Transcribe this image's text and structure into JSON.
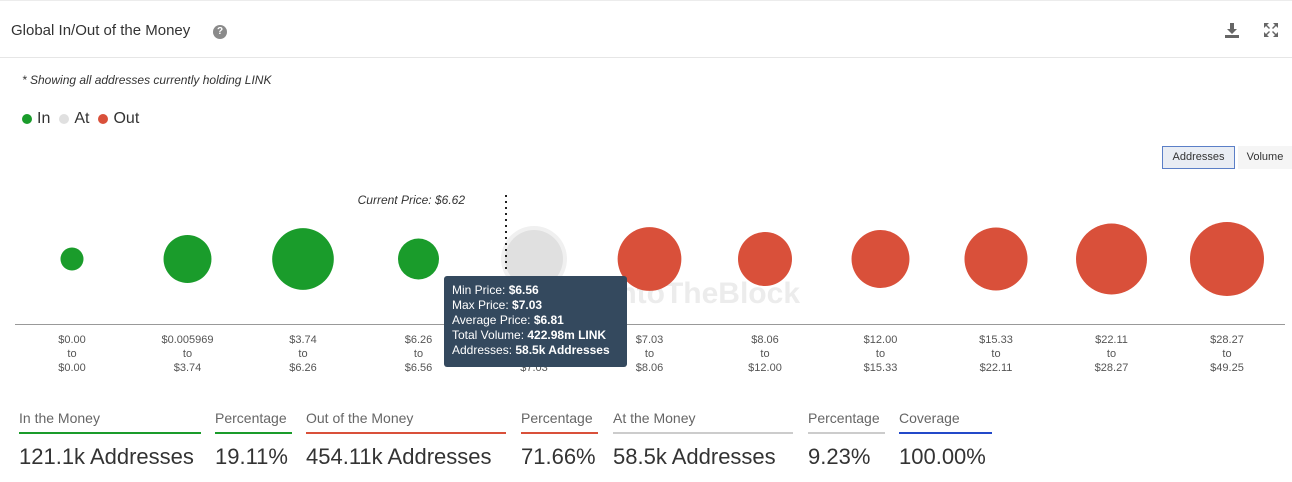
{
  "header": {
    "title": "Global In/Out of the Money",
    "help_icon": "help-icon",
    "download_icon": "download-icon",
    "expand_icon": "expand-icon"
  },
  "note": "* Showing all addresses currently holding LINK",
  "legend": [
    {
      "label": "In",
      "color": "#1a9c2b"
    },
    {
      "label": "At",
      "color": "#e0e0e0"
    },
    {
      "label": "Out",
      "color": "#d9503a"
    }
  ],
  "toggles": {
    "addresses": "Addresses",
    "volume": "Volume"
  },
  "watermark": "IntoTheBlock",
  "chart_data": {
    "type": "bubble",
    "current_price_label": "Current Price: $6.62",
    "categories": [
      {
        "line1": "$0.00",
        "to": "to",
        "line2": "$0.00",
        "status": "in",
        "size": 0.06
      },
      {
        "line1": "$0.005969",
        "to": "to",
        "line2": "$3.74",
        "status": "in",
        "size": 0.26
      },
      {
        "line1": "$3.74",
        "to": "to",
        "line2": "$6.26",
        "status": "in",
        "size": 0.43
      },
      {
        "line1": "$6.26",
        "to": "to",
        "line2": "$6.56",
        "status": "in",
        "size": 0.19
      },
      {
        "line1": "$6.56",
        "to": "to",
        "line2": "$7.03",
        "status": "at",
        "size": 0.38
      },
      {
        "line1": "$7.03",
        "to": "to",
        "line2": "$8.06",
        "status": "out",
        "size": 0.46
      },
      {
        "line1": "$8.06",
        "to": "to",
        "line2": "$12.00",
        "status": "out",
        "size": 0.33
      },
      {
        "line1": "$12.00",
        "to": "to",
        "line2": "$15.33",
        "status": "out",
        "size": 0.38
      },
      {
        "line1": "$15.33",
        "to": "to",
        "line2": "$22.11",
        "status": "out",
        "size": 0.45
      },
      {
        "line1": "$22.11",
        "to": "to",
        "line2": "$28.27",
        "status": "out",
        "size": 0.57
      },
      {
        "line1": "$28.27",
        "to": "to",
        "line2": "$49.25",
        "status": "out",
        "size": 0.62
      }
    ],
    "colors": {
      "in": "#1a9c2b",
      "at": "#e0e0e0",
      "out": "#d9503a"
    }
  },
  "tooltip": {
    "min_label": "Min Price: ",
    "min_value": "$6.56",
    "max_label": "Max Price: ",
    "max_value": "$7.03",
    "avg_label": "Average Price: ",
    "avg_value": "$6.81",
    "vol_label": "Total Volume: ",
    "vol_value": "422.98m LINK",
    "addr_label": "Addresses: ",
    "addr_value": "58.5k Addresses"
  },
  "stats": [
    {
      "label": "In the Money",
      "value": "121.1k Addresses",
      "color": "#1a9c2b"
    },
    {
      "label": "Percentage",
      "value": "19.11%",
      "color": "#1a9c2b"
    },
    {
      "label": "Out of the Money",
      "value": "454.11k Addresses",
      "color": "#d9503a"
    },
    {
      "label": "Percentage",
      "value": "71.66%",
      "color": "#d9503a"
    },
    {
      "label": "At the Money",
      "value": "58.5k Addresses",
      "color": "#cccccc"
    },
    {
      "label": "Percentage",
      "value": "9.23%",
      "color": "#cccccc"
    },
    {
      "label": "Coverage",
      "value": "100.00%",
      "color": "#2349c9"
    }
  ]
}
